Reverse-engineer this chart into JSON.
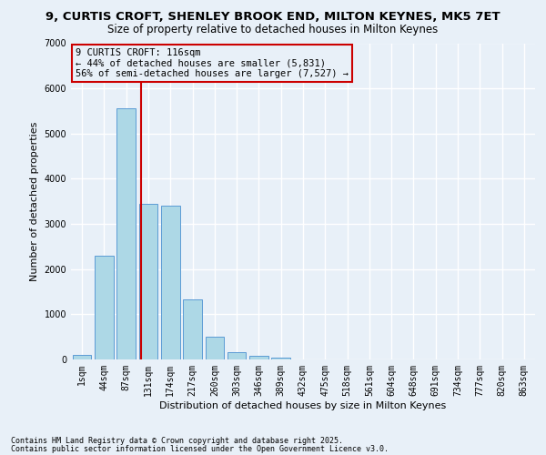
{
  "title_line1": "9, CURTIS CROFT, SHENLEY BROOK END, MILTON KEYNES, MK5 7ET",
  "title_line2": "Size of property relative to detached houses in Milton Keynes",
  "xlabel": "Distribution of detached houses by size in Milton Keynes",
  "ylabel": "Number of detached properties",
  "categories": [
    "1sqm",
    "44sqm",
    "87sqm",
    "131sqm",
    "174sqm",
    "217sqm",
    "260sqm",
    "303sqm",
    "346sqm",
    "389sqm",
    "432sqm",
    "475sqm",
    "518sqm",
    "561sqm",
    "604sqm",
    "648sqm",
    "691sqm",
    "734sqm",
    "777sqm",
    "820sqm",
    "863sqm"
  ],
  "values": [
    100,
    2300,
    5550,
    3450,
    3400,
    1330,
    500,
    170,
    75,
    50,
    10,
    5,
    2,
    1,
    1,
    0,
    0,
    0,
    0,
    0,
    0
  ],
  "bar_color": "#add8e6",
  "bar_edge_color": "#5b9bd5",
  "bar_width": 0.85,
  "vline_x": 2.67,
  "vline_color": "#cc0000",
  "annotation_line1": "9 CURTIS CROFT: 116sqm",
  "annotation_line2": "← 44% of detached houses are smaller (5,831)",
  "annotation_line3": "56% of semi-detached houses are larger (7,527) →",
  "annotation_box_color": "#cc0000",
  "ylim": [
    0,
    7000
  ],
  "yticks": [
    0,
    1000,
    2000,
    3000,
    4000,
    5000,
    6000,
    7000
  ],
  "background_color": "#e8f0f8",
  "grid_color": "#ffffff",
  "footer_line1": "Contains HM Land Registry data © Crown copyright and database right 2025.",
  "footer_line2": "Contains public sector information licensed under the Open Government Licence v3.0.",
  "title_fontsize": 9.5,
  "subtitle_fontsize": 8.5,
  "label_fontsize": 8,
  "tick_fontsize": 7,
  "annot_fontsize": 7.5
}
